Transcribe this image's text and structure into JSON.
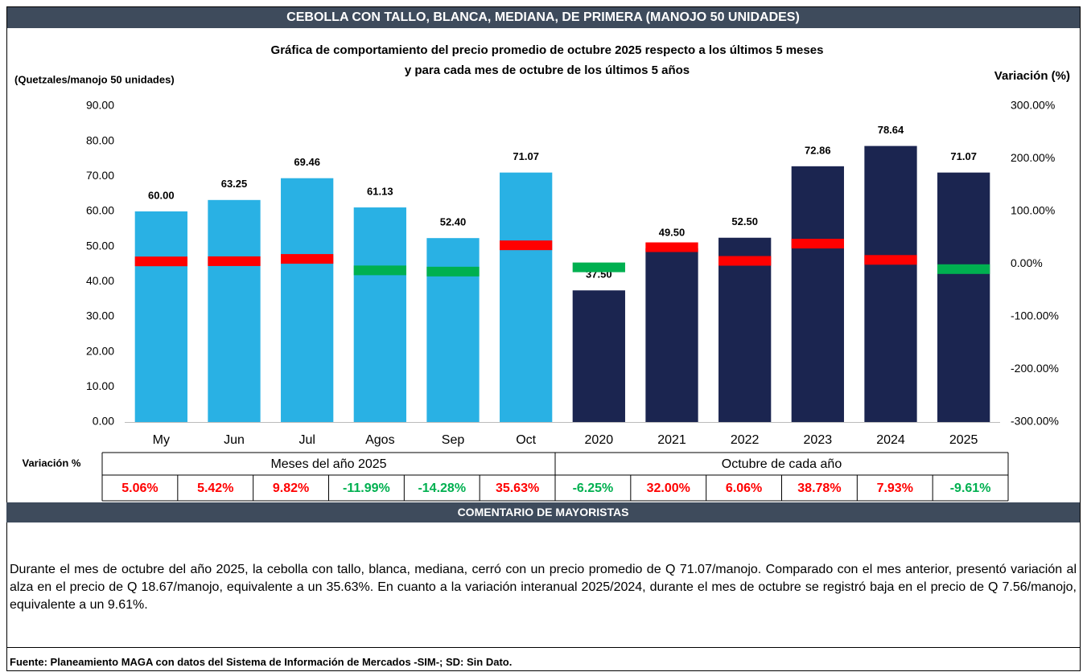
{
  "header": "CEBOLLA CON TALLO, BLANCA, MEDIANA, DE PRIMERA (MANOJO 50 UNIDADES)",
  "chart_data": {
    "type": "bar",
    "title": "Gráfica de comportamiento del precio promedio de octubre 2025 respecto a los últimos 5 meses",
    "subtitle": "y para cada mes de octubre de los últimos 5 años",
    "y_label": "(Quetzales/manojo 50 unidades)",
    "y2_label": "Variación (%)",
    "categories": [
      "My",
      "Jun",
      "Jul",
      "Agos",
      "Sep",
      "Oct",
      "2020",
      "2021",
      "2022",
      "2023",
      "2024",
      "2025"
    ],
    "series": [
      {
        "values": [
          60.0,
          63.25,
          69.46,
          61.13,
          52.4,
          71.07,
          37.5,
          49.5,
          52.5,
          72.86,
          78.64,
          71.07
        ],
        "value_labels": [
          "60.00",
          "63.25",
          "69.46",
          "61.13",
          "52.40",
          "71.07",
          "37.50",
          "49.50",
          "52.50",
          "72.86",
          "78.64",
          "71.07"
        ],
        "colors": [
          "#29b1e4",
          "#29b1e4",
          "#29b1e4",
          "#29b1e4",
          "#29b1e4",
          "#29b1e4",
          "#1b2550",
          "#1b2550",
          "#1b2550",
          "#1b2550",
          "#1b2550",
          "#1b2550"
        ]
      },
      {
        "axis": "y2",
        "values": [
          5.06,
          5.42,
          9.82,
          -11.99,
          -14.28,
          35.63,
          -6.25,
          32.0,
          6.06,
          38.78,
          7.93,
          -9.61
        ],
        "value_labels": [
          "5.06%",
          "5.42%",
          "9.82%",
          "-11.99%",
          "-14.28%",
          "35.63%",
          "-6.25%",
          "32.00%",
          "6.06%",
          "38.78%",
          "7.93%",
          "-9.61%"
        ],
        "colors": [
          "#ff0000",
          "#ff0000",
          "#ff0000",
          "#00b050",
          "#00b050",
          "#ff0000",
          "#00b050",
          "#ff0000",
          "#ff0000",
          "#ff0000",
          "#ff0000",
          "#00b050"
        ]
      }
    ],
    "ylim": [
      0,
      90
    ],
    "yticks": [
      {
        "value": 0,
        "label": "0.00"
      },
      {
        "value": 10,
        "label": "10.00"
      },
      {
        "value": 20,
        "label": "20.00"
      },
      {
        "value": 30,
        "label": "30.00"
      },
      {
        "value": 40,
        "label": "40.00"
      },
      {
        "value": 50,
        "label": "50.00"
      },
      {
        "value": 60,
        "label": "60.00"
      },
      {
        "value": 70,
        "label": "70.00"
      },
      {
        "value": 80,
        "label": "80.00"
      },
      {
        "value": 90,
        "label": "90.00"
      }
    ],
    "y2lim": [
      -300,
      300
    ],
    "y2ticks": [
      {
        "value": -300,
        "label": "-300.00%"
      },
      {
        "value": -200,
        "label": "-200.00%"
      },
      {
        "value": -100,
        "label": "-100.00%"
      },
      {
        "value": 0,
        "label": "0.00%"
      },
      {
        "value": 100,
        "label": "100.00%"
      },
      {
        "value": 200,
        "label": "200.00%"
      },
      {
        "value": 300,
        "label": "300.00%"
      }
    ],
    "grid": false,
    "table": {
      "row_label": "Variación %",
      "groups": [
        "Meses del año  2025",
        "Octubre de cada año"
      ]
    }
  },
  "comment_header": "COMENTARIO DE MAYORISTAS",
  "comment": "Durante el mes de octubre del año 2025, la cebolla con tallo, blanca, mediana, cerró con un precio promedio de Q 71.07/manojo. Comparado con el mes anterior, presentó variación al alza en el precio de Q 18.67/manojo, equivalente a un 35.63%. En cuanto a la variación interanual 2025/2024, durante el mes de octubre se registró baja en el precio de Q 7.56/manojo, equivalente a un 9.61%.",
  "source": "Fuente: Planeamiento MAGA con datos del  Sistema de Información de Mercados -SIM-; SD: Sin Dato."
}
